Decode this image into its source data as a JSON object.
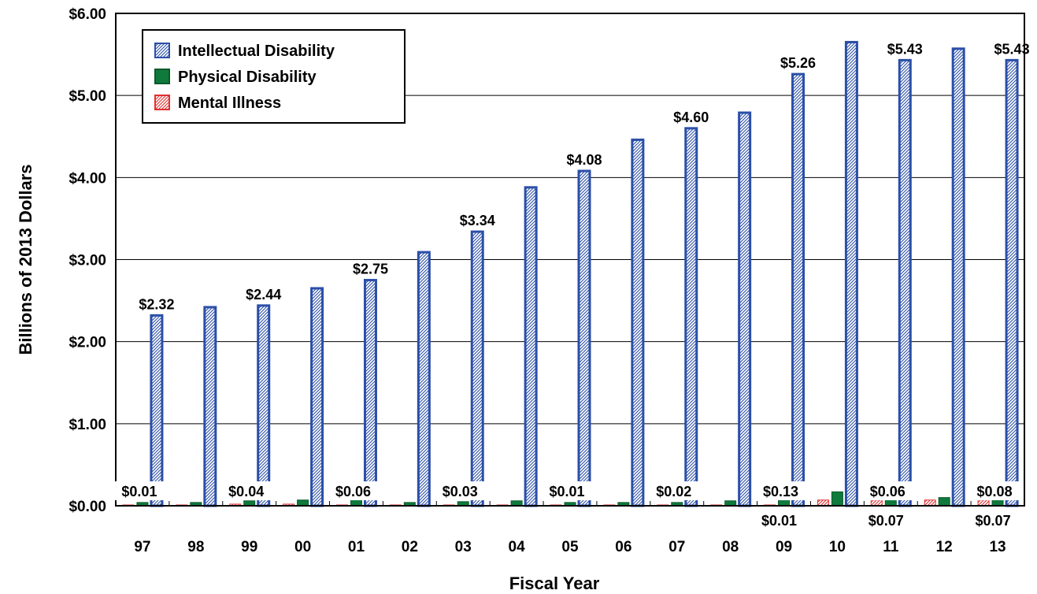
{
  "chart_data": {
    "type": "bar",
    "xlabel": "Fiscal Year",
    "ylabel": "Billions of 2013 Dollars",
    "ylim": [
      0,
      6
    ],
    "yticks": [
      "$0.00",
      "$1.00",
      "$2.00",
      "$3.00",
      "$4.00",
      "$5.00",
      "$6.00"
    ],
    "grid": true,
    "legend_position": "top-left",
    "categories": [
      "97",
      "98",
      "99",
      "00",
      "01",
      "02",
      "03",
      "04",
      "05",
      "06",
      "07",
      "08",
      "09",
      "10",
      "11",
      "12",
      "13"
    ],
    "series": [
      {
        "name": "Mental Illness",
        "color": "#e03030",
        "pattern": "hatched",
        "values": [
          0.01,
          0.01,
          0.02,
          0.02,
          0.01,
          0.01,
          0.01,
          0.01,
          0.01,
          0.01,
          0.01,
          0.01,
          0.01,
          0.07,
          0.07,
          0.07,
          0.07
        ]
      },
      {
        "name": "Physical Disability",
        "color": "#0f7a3c",
        "pattern": "solid",
        "values": [
          0.04,
          0.04,
          0.06,
          0.07,
          0.08,
          0.04,
          0.05,
          0.06,
          0.04,
          0.04,
          0.04,
          0.06,
          0.15,
          0.17,
          0.08,
          0.1,
          0.1
        ]
      },
      {
        "name": "Intellectual Disability",
        "color": "#2b4fa8",
        "pattern": "hatched",
        "values": [
          2.32,
          2.42,
          2.44,
          2.65,
          2.75,
          3.09,
          3.34,
          3.88,
          4.08,
          4.46,
          4.6,
          4.79,
          5.26,
          5.65,
          5.43,
          5.57,
          5.43
        ]
      }
    ],
    "value_labels": [
      {
        "category": "97",
        "text": "$2.32"
      },
      {
        "category": "99",
        "text": "$2.44"
      },
      {
        "category": "01",
        "text": "$2.75"
      },
      {
        "category": "03",
        "text": "$3.34"
      },
      {
        "category": "05",
        "text": "$4.08"
      },
      {
        "category": "07",
        "text": "$4.60"
      },
      {
        "category": "09",
        "text": "$5.26"
      },
      {
        "category": "11",
        "text": "$5.43"
      },
      {
        "category": "13",
        "text": "$5.43"
      }
    ],
    "small_labels_above": [
      {
        "category": "97",
        "text": "$0.01"
      },
      {
        "category": "99",
        "text": "$0.04"
      },
      {
        "category": "01",
        "text": "$0.06"
      },
      {
        "category": "03",
        "text": "$0.03"
      },
      {
        "category": "05",
        "text": "$0.01"
      },
      {
        "category": "07",
        "text": "$0.02"
      },
      {
        "category": "09",
        "text": "$0.13"
      },
      {
        "category": "11",
        "text": "$0.06"
      },
      {
        "category": "13",
        "text": "$0.08"
      }
    ],
    "small_labels_below": [
      {
        "category": "09",
        "text": "$0.01"
      },
      {
        "category": "11",
        "text": "$0.07"
      },
      {
        "category": "13",
        "text": "$0.07"
      }
    ],
    "legend_order": [
      "Intellectual Disability",
      "Physical Disability",
      "Mental Illness"
    ]
  }
}
